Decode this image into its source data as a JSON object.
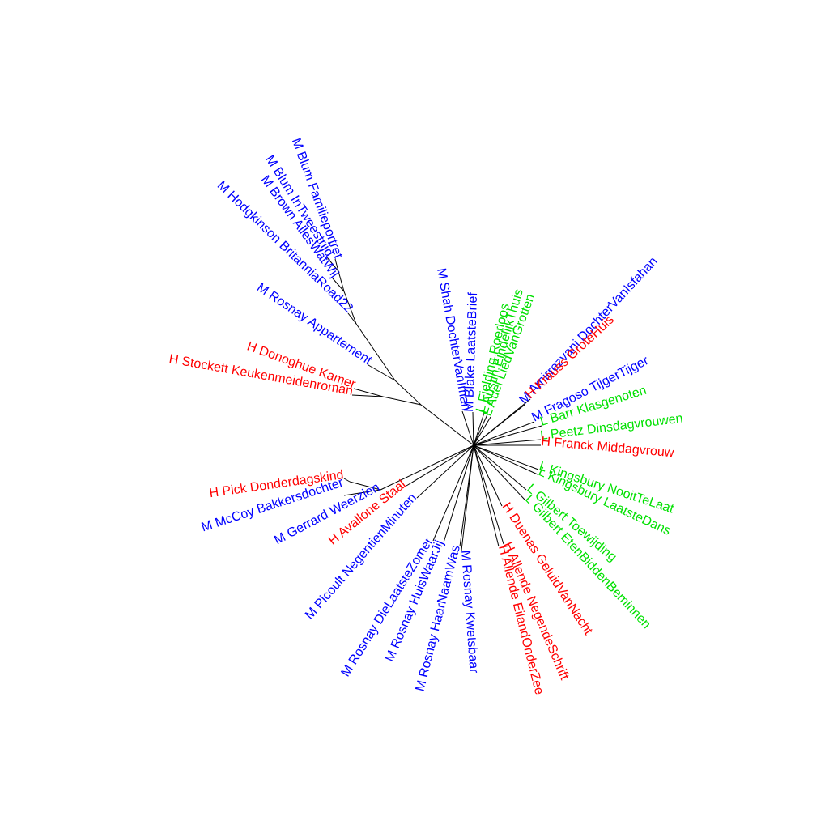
{
  "colors": {
    "H": "#ff0000",
    "L": "#00e000",
    "M": "#0000ff",
    "edge": "#000000"
  },
  "leaves": [
    {
      "label": "M Blum Familieportret",
      "group": "M"
    },
    {
      "label": "M Blum InTweestrijd",
      "group": "M"
    },
    {
      "label": "M Brown AllesWatWij",
      "group": "M"
    },
    {
      "label": "M Hodgkinson BritanniaRoad22",
      "group": "M"
    },
    {
      "label": "M Rosnay Appartement",
      "group": "M"
    },
    {
      "label": "H Donoghue Kamer",
      "group": "H"
    },
    {
      "label": "H Stockett Keukenmeidenroman",
      "group": "H"
    },
    {
      "label": "M Shah DochterVanIman",
      "group": "M"
    },
    {
      "label": "M Blake LaatsteBrief",
      "group": "M"
    },
    {
      "label": "L Fielding Roerloos",
      "group": "L"
    },
    {
      "label": "L Austin EindelijkThuis",
      "group": "L"
    },
    {
      "label": "L Auel LiedVanGrotten",
      "group": "L"
    },
    {
      "label": "M Amirrezvani DochterVanIsfahan",
      "group": "M"
    },
    {
      "label": "H Krauss GroteHuis",
      "group": "H"
    },
    {
      "label": "M Fragoso TijgerTijger",
      "group": "M"
    },
    {
      "label": "L Barr Klasgenoten",
      "group": "L"
    },
    {
      "label": "L Peetz Dinsdagvrouwen",
      "group": "L"
    },
    {
      "label": "H Franck Middagvrouw",
      "group": "H"
    },
    {
      "label": "L Kingsbury NooitTeLaat",
      "group": "L"
    },
    {
      "label": "L Kingsbury LaatsteDans",
      "group": "L"
    },
    {
      "label": "L Gilbert Toewijding",
      "group": "L"
    },
    {
      "label": "L Gilbert EtenBiddenBeminnen",
      "group": "L"
    },
    {
      "label": "H Duenas GeluidVanNacht",
      "group": "H"
    },
    {
      "label": "H Allende NegendeSchrift",
      "group": "H"
    },
    {
      "label": "H Allende EilandOnderZee",
      "group": "H"
    },
    {
      "label": "M Rosnay Kwetsbaar",
      "group": "M"
    },
    {
      "label": "M Rosnay HaarNaamWas",
      "group": "M"
    },
    {
      "label": "M Rosnay HuisWaarJij",
      "group": "M"
    },
    {
      "label": "M Rosnay DieLaatsteZomer",
      "group": "M"
    },
    {
      "label": "M Picoult NegentienMinuten",
      "group": "M"
    },
    {
      "label": "H Avallone Staal",
      "group": "H"
    },
    {
      "label": "M Gerrard Weerzien",
      "group": "M"
    },
    {
      "label": "M McCoy Bakkersdochter",
      "group": "M"
    },
    {
      "label": "H Pick Donderdagskind",
      "group": "H"
    }
  ]
}
